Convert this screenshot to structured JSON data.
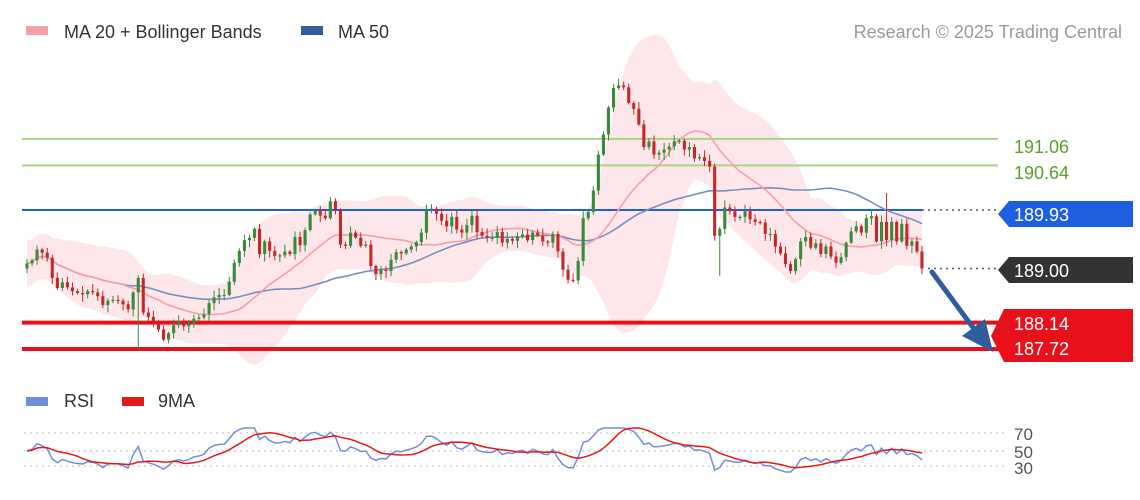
{
  "legend_main": [
    {
      "label": "MA 20 + Bollinger Bands",
      "color": "#f4a0a6"
    },
    {
      "label": "MA 50",
      "color": "#2f5d9e"
    }
  ],
  "legend_rsi": [
    {
      "label": "RSI",
      "color": "#6f8fdc"
    },
    {
      "label": "9MA",
      "color": "#e11919"
    }
  ],
  "copyright": "Research © 2025 Trading Central",
  "levels": {
    "r2": "191.06",
    "r1": "190.64",
    "pivot": "189.93",
    "last": "189.00",
    "s1": "188.14",
    "s2": "187.72"
  },
  "colors": {
    "up_candle": "#3a8a3a",
    "down_candle": "#c62828",
    "band_fill": "#fde3e6",
    "ma20": "#f4a0a6",
    "ma50": "#7a8fc0",
    "pivot_line": "#1e5fe0",
    "support_line": "#e8111b",
    "resistance_line": "#a9d28a",
    "arrow": "#2f5d9e",
    "last_tag": "#333333"
  },
  "chart_data": {
    "type": "candlestick",
    "price_axis_reference": {
      "label_values": [
        191.06,
        190.64,
        189.93,
        189.0,
        188.14,
        187.72
      ]
    },
    "close": [
      189.08,
      189.13,
      189.3,
      189.25,
      189.17,
      188.85,
      188.69,
      188.78,
      188.7,
      188.64,
      188.61,
      188.59,
      188.64,
      188.62,
      188.56,
      188.42,
      188.49,
      188.5,
      188.49,
      188.43,
      188.35,
      188.62,
      188.85,
      188.3,
      188.23,
      188.15,
      188.03,
      187.87,
      187.97,
      188.1,
      188.14,
      188.08,
      188.12,
      188.2,
      188.22,
      188.27,
      188.45,
      188.54,
      188.58,
      188.58,
      188.79,
      189.09,
      189.28,
      189.45,
      189.49,
      189.63,
      189.23,
      189.43,
      189.28,
      189.2,
      189.21,
      189.27,
      189.23,
      189.5,
      189.37,
      189.61,
      189.86,
      189.92,
      189.84,
      189.8,
      190.07,
      189.93,
      189.38,
      189.36,
      189.57,
      189.49,
      189.36,
      189.38,
      189.04,
      188.91,
      188.98,
      188.96,
      189.14,
      189.26,
      189.24,
      189.3,
      189.35,
      189.42,
      189.57,
      189.94,
      189.95,
      189.87,
      189.76,
      189.67,
      189.82,
      189.62,
      189.57,
      189.69,
      189.84,
      189.58,
      189.52,
      189.49,
      189.49,
      189.58,
      189.41,
      189.47,
      189.44,
      189.51,
      189.54,
      189.45,
      189.57,
      189.52,
      189.43,
      189.41,
      189.55,
      189.27,
      188.98,
      188.82,
      188.81,
      189.12,
      189.8,
      189.9,
      190.24,
      190.81,
      191.13,
      191.56,
      191.87,
      191.91,
      191.88,
      191.63,
      191.54,
      191.29,
      190.93,
      191.02,
      190.81,
      190.84,
      190.89,
      190.94,
      191.02,
      191.03,
      190.89,
      190.93,
      190.75,
      190.77,
      190.71,
      190.62,
      189.52,
      189.63,
      189.97,
      189.91,
      189.82,
      189.82,
      189.91,
      189.78,
      189.74,
      189.73,
      189.55,
      189.55,
      189.35,
      189.24,
      189.07,
      188.96,
      189.15,
      189.43,
      189.5,
      189.33,
      189.4,
      189.23,
      189.35,
      189.19,
      189.09,
      189.18,
      189.41,
      189.59,
      189.67,
      189.57,
      189.8,
      189.83,
      189.43,
      189.74,
      189.45,
      189.74,
      189.43,
      189.71,
      189.36,
      189.43,
      189.27,
      189.0
    ]
  }
}
